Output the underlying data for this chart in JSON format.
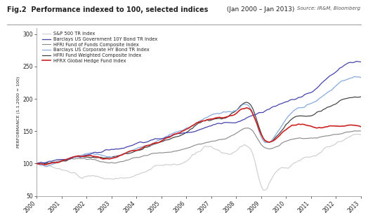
{
  "title_bold": "Fig.2  Performance indexed to 100, selected indices",
  "title_normal": " (Jan 2000 – Jan 2013)",
  "source": "Source: IR&M, Bloomberg",
  "ylabel": "PERFORMANCE (1.1.2000 = 100)",
  "ylim": [
    50,
    310
  ],
  "yticks": [
    50,
    100,
    150,
    200,
    250,
    300
  ],
  "background_color": "#ffffff",
  "plot_bg_color": "#ffffff",
  "text_color": "#222222",
  "series": [
    {
      "label": "S&P 500 TR Index",
      "color": "#cccccc",
      "linewidth": 0.8,
      "zorder": 2
    },
    {
      "label": "Barclays US Government 10Y Bond TR Index",
      "color": "#4444aa",
      "linewidth": 0.9,
      "zorder": 5
    },
    {
      "label": "HFRI Fund of Funds Composite Index",
      "color": "#888888",
      "linewidth": 0.8,
      "zorder": 3
    },
    {
      "label": "Barclays US Corporate HY Bond TR Index",
      "color": "#88aadd",
      "linewidth": 0.9,
      "zorder": 4
    },
    {
      "label": "HFRI Fund Weighted Composite Index",
      "color": "#333333",
      "linewidth": 0.8,
      "zorder": 3
    },
    {
      "label": "HFRX Global Hedge Fund Index",
      "color": "#cc2222",
      "linewidth": 1.2,
      "zorder": 6
    }
  ]
}
